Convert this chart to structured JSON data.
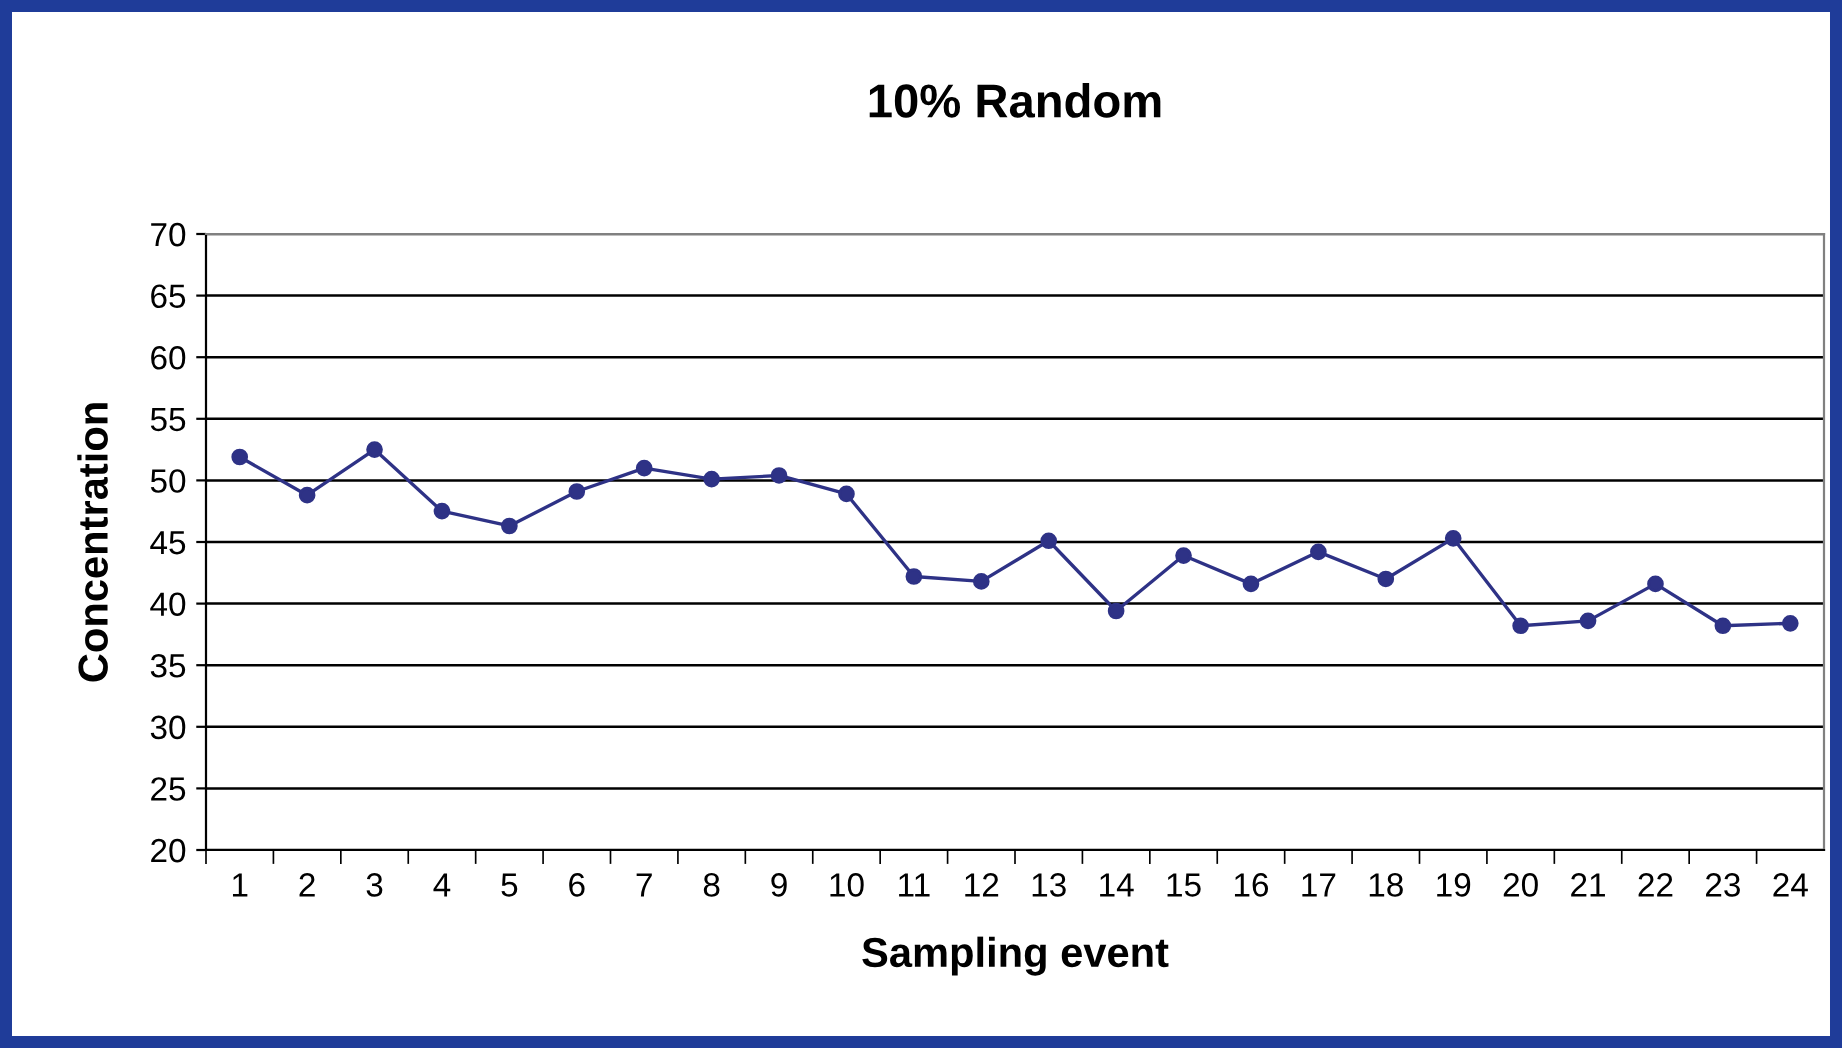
{
  "chart_data": {
    "type": "line",
    "title": "10% Random",
    "xlabel": "Sampling event",
    "ylabel": "Concentration",
    "categories": [
      "1",
      "2",
      "3",
      "4",
      "5",
      "6",
      "7",
      "8",
      "9",
      "10",
      "11",
      "12",
      "13",
      "14",
      "15",
      "16",
      "17",
      "18",
      "19",
      "20",
      "21",
      "22",
      "23",
      "24"
    ],
    "series": [
      {
        "color": "#2e3286",
        "values": [
          51.9,
          48.8,
          52.5,
          47.5,
          46.3,
          49.1,
          51.0,
          50.1,
          50.4,
          48.9,
          42.2,
          41.8,
          45.1,
          39.4,
          43.9,
          41.6,
          44.2,
          42.0,
          45.3,
          38.2,
          38.6,
          41.6,
          38.2,
          38.4
        ]
      }
    ],
    "ylim": [
      20,
      70
    ],
    "yticks": [
      20,
      25,
      30,
      35,
      40,
      45,
      50,
      55,
      60,
      65,
      70
    ],
    "grid": "y",
    "marker": "circle",
    "line_style": "solid"
  }
}
